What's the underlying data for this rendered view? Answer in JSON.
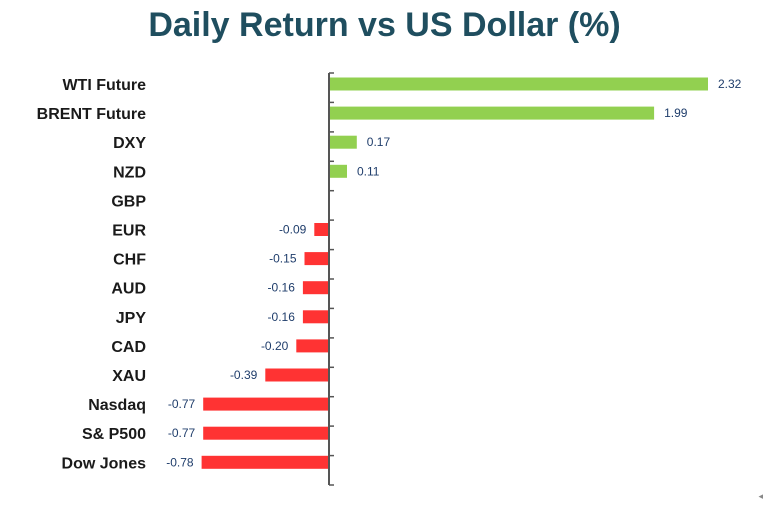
{
  "chart_data": {
    "type": "bar",
    "orientation": "horizontal",
    "title": "Daily Return vs US Dollar (%)",
    "categories": [
      "WTI Future",
      "BRENT Future",
      "DXY",
      "NZD",
      "GBP",
      "EUR",
      "CHF",
      "AUD",
      "JPY",
      "CAD",
      "XAU",
      "Nasdaq",
      "S& P500",
      "Dow Jones"
    ],
    "values": [
      2.32,
      1.99,
      0.17,
      0.11,
      0.0,
      -0.09,
      -0.15,
      -0.16,
      -0.16,
      -0.2,
      -0.39,
      -0.77,
      -0.77,
      -0.78
    ],
    "value_labels": [
      "2.32",
      "1.99",
      "0.17",
      "0.11",
      "",
      "-0.09",
      "-0.15",
      "-0.16",
      "-0.16",
      "-0.20",
      "-0.39",
      "-0.77",
      "-0.77",
      "-0.78"
    ],
    "xlim": [
      -0.78,
      2.32
    ],
    "grid": false,
    "legend": "none",
    "colors": {
      "positive": "#92d050",
      "negative": "#ff3333",
      "title": "#1f4e5f",
      "value_label": "#1f3d6b",
      "axis": "#555555"
    }
  },
  "corner_icon": "triangle-left-icon"
}
